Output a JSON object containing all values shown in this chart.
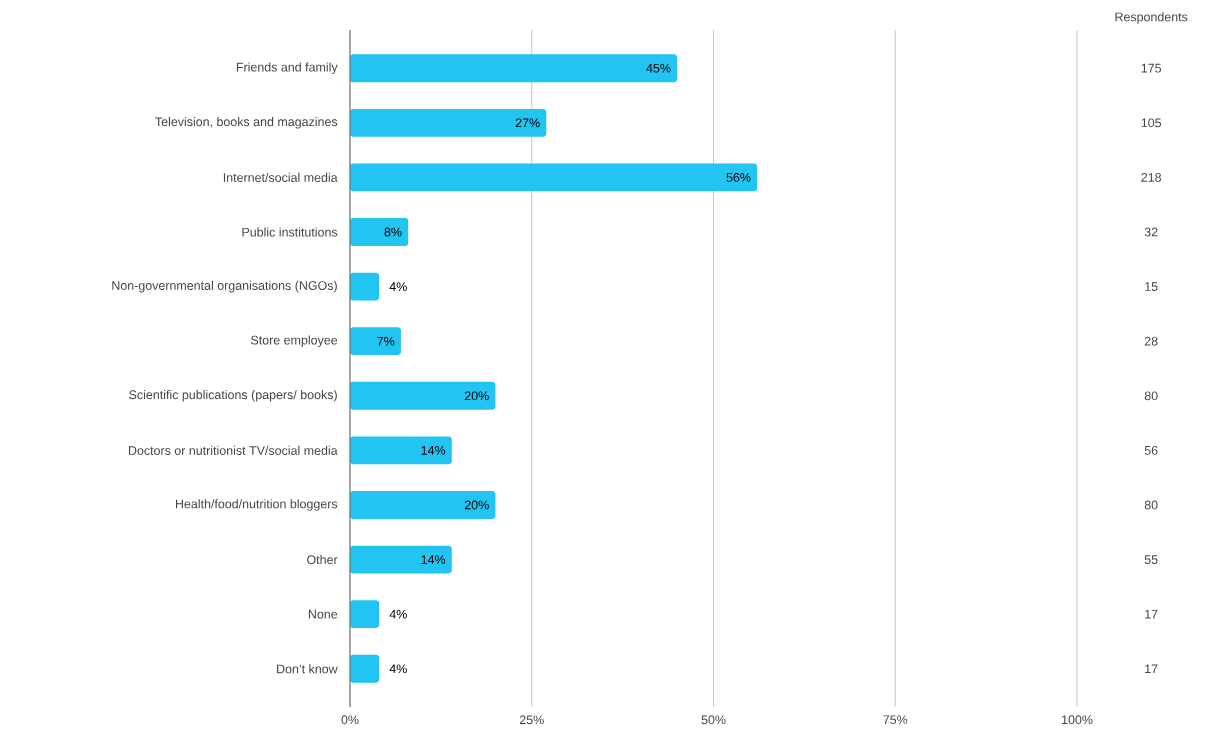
{
  "chart_data": {
    "type": "bar",
    "orientation": "horizontal",
    "categories": [
      "Friends and family",
      "Television, books and magazines",
      "Internet/social media",
      "Public institutions",
      "Non-governmental organisations (NGOs)",
      "Store employee",
      "Scientific publications (papers/ books)",
      "Doctors or nutritionist TV/social media",
      "Health/food/nutrition bloggers",
      "Other",
      "None",
      "Don’t know"
    ],
    "values": [
      45,
      27,
      56,
      8,
      4,
      7,
      20,
      14,
      20,
      14,
      4,
      4
    ],
    "value_labels": [
      "45%",
      "27%",
      "56%",
      "8%",
      "4%",
      "7%",
      "20%",
      "14%",
      "20%",
      "14%",
      "4%",
      "4%"
    ],
    "color": "#22c4f2",
    "xlim": [
      0,
      100
    ],
    "xticks": [
      {
        "value": 0,
        "label": "0%"
      },
      {
        "value": 25,
        "label": "25%"
      },
      {
        "value": 50,
        "label": "50%"
      },
      {
        "value": 75,
        "label": "75%"
      },
      {
        "value": 100,
        "label": "100%"
      }
    ],
    "grid": "x",
    "annotations": [
      "Respondents",
      "175",
      "105",
      "218",
      "32",
      "15",
      "28",
      "80",
      "56",
      "80",
      "55",
      "17",
      "17"
    ]
  }
}
